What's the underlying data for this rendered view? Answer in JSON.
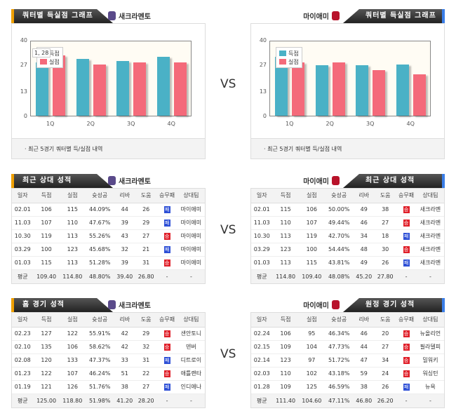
{
  "vs_label": "VS",
  "colors": {
    "scored": "#4ab1c6",
    "allowed": "#f46a7a",
    "win": "#e0202a",
    "loss": "#2d4fd6"
  },
  "charts": {
    "left": {
      "tab": "쿼터별 득실점 그래프",
      "team": "새크라멘토",
      "footer": "· 최근 5경기 쿼터별 득/실점 내역",
      "tooltip": "1, 28"
    },
    "right": {
      "tab": "쿼터별 득실점 그래프",
      "team": "마이애미",
      "footer": "· 최근 5경기 쿼터별 득/실점 내역"
    }
  },
  "chart_data": [
    {
      "type": "bar",
      "title": "새크라멘토 쿼터별 득실점",
      "categories": [
        "1Q",
        "2Q",
        "3Q",
        "4Q"
      ],
      "series": [
        {
          "name": "득점",
          "values": [
            28,
            30,
            29,
            31
          ]
        },
        {
          "name": "실점",
          "values": [
            32,
            27,
            28,
            28
          ]
        }
      ],
      "yticks": [
        "0",
        "13",
        "27",
        "40"
      ],
      "ylim": [
        0,
        40
      ],
      "legend": "top-left"
    },
    {
      "type": "bar",
      "title": "마이애미 쿼터별 득실점",
      "categories": [
        "1Q",
        "2Q",
        "3Q",
        "4Q"
      ],
      "series": [
        {
          "name": "득점",
          "values": [
            31,
            26.5,
            26.5,
            27
          ]
        },
        {
          "name": "실점",
          "values": [
            28,
            28,
            24,
            22
          ]
        }
      ],
      "yticks": [
        "0",
        "13",
        "27",
        "40"
      ],
      "ylim": [
        0,
        40
      ],
      "legend": "top-left"
    }
  ],
  "headers": [
    "일자",
    "득점",
    "실점",
    "슛성공",
    "리바",
    "도움",
    "승무패",
    "상대팀"
  ],
  "tables": [
    {
      "tab": "최근 상대 성적",
      "team": "새크라멘토",
      "side": "left",
      "rows": [
        [
          "02.01",
          "106",
          "115",
          "44.09%",
          "44",
          "26",
          "패",
          "마이애미"
        ],
        [
          "11.03",
          "107",
          "110",
          "47.67%",
          "39",
          "29",
          "패",
          "마이애미"
        ],
        [
          "10.30",
          "119",
          "113",
          "55.26%",
          "43",
          "27",
          "승",
          "마이애미"
        ],
        [
          "03.29",
          "100",
          "123",
          "45.68%",
          "32",
          "21",
          "패",
          "마이애미"
        ],
        [
          "01.03",
          "115",
          "113",
          "51.28%",
          "39",
          "31",
          "승",
          "마이애미"
        ]
      ],
      "avg": [
        "평균",
        "109.40",
        "114.80",
        "48.80%",
        "39.40",
        "26.80",
        "-",
        "-"
      ]
    },
    {
      "tab": "최근 상대 성적",
      "team": "마이애미",
      "side": "right",
      "rows": [
        [
          "02.01",
          "115",
          "106",
          "50.00%",
          "49",
          "38",
          "승",
          "새크라멘"
        ],
        [
          "11.03",
          "110",
          "107",
          "49.44%",
          "46",
          "27",
          "승",
          "새크라멘"
        ],
        [
          "10.30",
          "113",
          "119",
          "42.70%",
          "34",
          "18",
          "패",
          "새크라멘"
        ],
        [
          "03.29",
          "123",
          "100",
          "54.44%",
          "48",
          "30",
          "승",
          "새크라멘"
        ],
        [
          "01.03",
          "113",
          "115",
          "43.81%",
          "49",
          "26",
          "패",
          "새크라멘"
        ]
      ],
      "avg": [
        "평균",
        "114.80",
        "109.40",
        "48.08%",
        "45.20",
        "27.80",
        "-",
        "-"
      ]
    },
    {
      "tab": "홈 경기 성적",
      "team": "새크라멘토",
      "side": "left",
      "rows": [
        [
          "02.23",
          "127",
          "122",
          "55.91%",
          "42",
          "29",
          "승",
          "샌안토니"
        ],
        [
          "02.10",
          "135",
          "106",
          "58.62%",
          "42",
          "32",
          "승",
          "덴버"
        ],
        [
          "02.08",
          "120",
          "133",
          "47.37%",
          "33",
          "31",
          "패",
          "디트로이"
        ],
        [
          "01.23",
          "122",
          "107",
          "46.24%",
          "51",
          "22",
          "승",
          "애틀랜타"
        ],
        [
          "01.19",
          "121",
          "126",
          "51.76%",
          "38",
          "27",
          "패",
          "인디애나"
        ]
      ],
      "avg": [
        "평균",
        "125.00",
        "118.80",
        "51.98%",
        "41.20",
        "28.20",
        "-",
        "-"
      ]
    },
    {
      "tab": "원정 경기 성적",
      "team": "마이애미",
      "side": "right",
      "rows": [
        [
          "02.24",
          "106",
          "95",
          "46.34%",
          "46",
          "20",
          "승",
          "뉴올리언"
        ],
        [
          "02.15",
          "109",
          "104",
          "47.73%",
          "44",
          "27",
          "승",
          "필라델피"
        ],
        [
          "02.14",
          "123",
          "97",
          "51.72%",
          "47",
          "34",
          "승",
          "밀워키"
        ],
        [
          "02.03",
          "110",
          "102",
          "43.18%",
          "59",
          "24",
          "승",
          "워싱턴"
        ],
        [
          "01.28",
          "109",
          "125",
          "46.59%",
          "38",
          "26",
          "패",
          "뉴욕"
        ]
      ],
      "avg": [
        "평균",
        "111.40",
        "104.60",
        "47.11%",
        "46.80",
        "26.20",
        "-",
        "-"
      ]
    }
  ]
}
